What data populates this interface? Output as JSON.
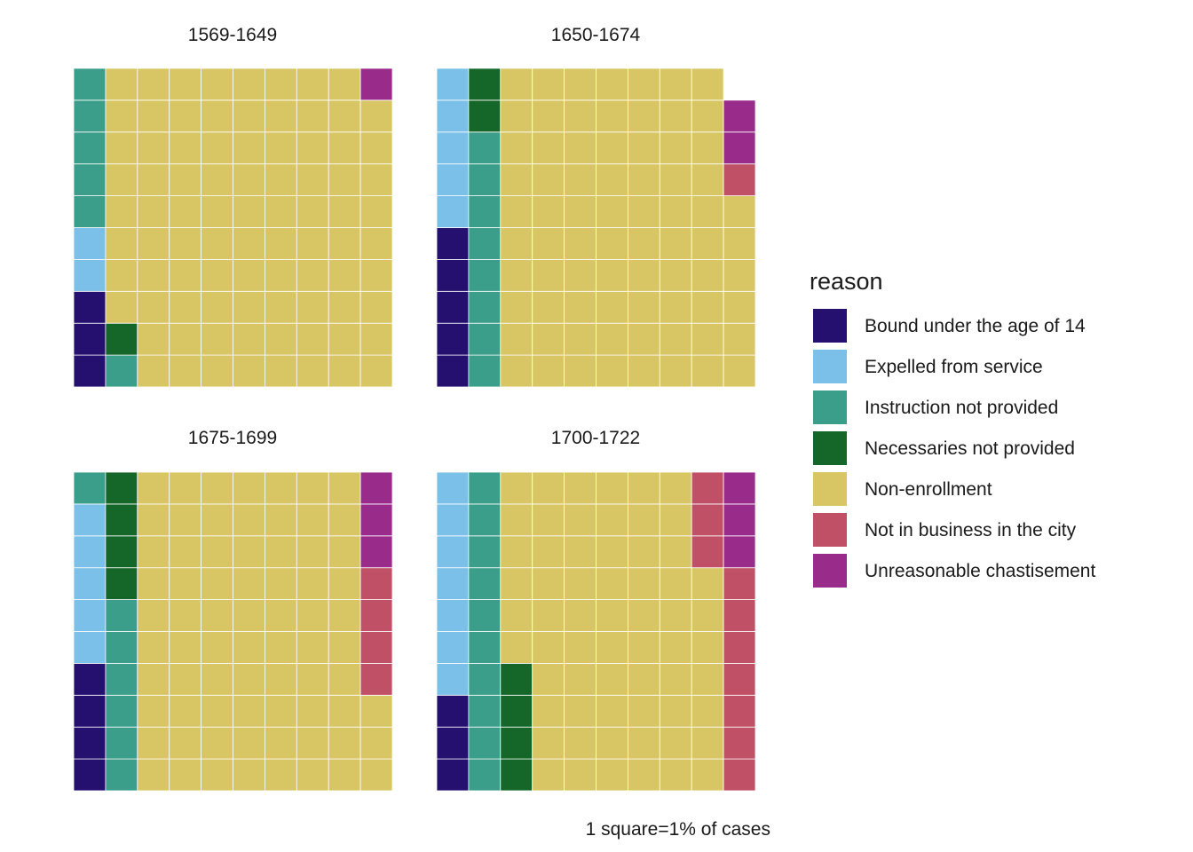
{
  "chart_data": {
    "type": "waffle",
    "grid": {
      "rows": 10,
      "cols": 10
    },
    "legend": {
      "title": "reason",
      "position": "right",
      "items": [
        {
          "key": "bound",
          "label": "Bound under the age of 14",
          "color": "#25106f"
        },
        {
          "key": "expelled",
          "label": "Expelled from service",
          "color": "#7ac0e9"
        },
        {
          "key": "instruction",
          "label": "Instruction not provided",
          "color": "#3a9e8a"
        },
        {
          "key": "necessaries",
          "label": "Necessaries not provided",
          "color": "#146729"
        },
        {
          "key": "nonenroll",
          "label": "Non-enrollment",
          "color": "#d8c665"
        },
        {
          "key": "notbusiness",
          "label": "Not in business in the city",
          "color": "#c05065"
        },
        {
          "key": "unreasonable",
          "label": "Unreasonable chastisement",
          "color": "#992b8b"
        }
      ]
    },
    "caption": "1 square=1% of cases",
    "panels": [
      {
        "title": "1569-1649",
        "values": {
          "bound": 3,
          "expelled": 2,
          "instruction": 6,
          "necessaries": 1,
          "nonenroll": 87,
          "notbusiness": 0,
          "unreasonable": 1
        }
      },
      {
        "title": "1650-1674",
        "values": {
          "bound": 5,
          "expelled": 5,
          "instruction": 8,
          "necessaries": 2,
          "nonenroll": 76,
          "notbusiness": 1,
          "unreasonable": 2
        }
      },
      {
        "title": "1675-1699",
        "values": {
          "bound": 4,
          "expelled": 5,
          "instruction": 7,
          "necessaries": 4,
          "nonenroll": 73,
          "notbusiness": 4,
          "unreasonable": 3
        }
      },
      {
        "title": "1700-1722",
        "values": {
          "bound": 3,
          "expelled": 7,
          "instruction": 10,
          "necessaries": 4,
          "nonenroll": 63,
          "notbusiness": 10,
          "unreasonable": 3
        }
      }
    ]
  }
}
